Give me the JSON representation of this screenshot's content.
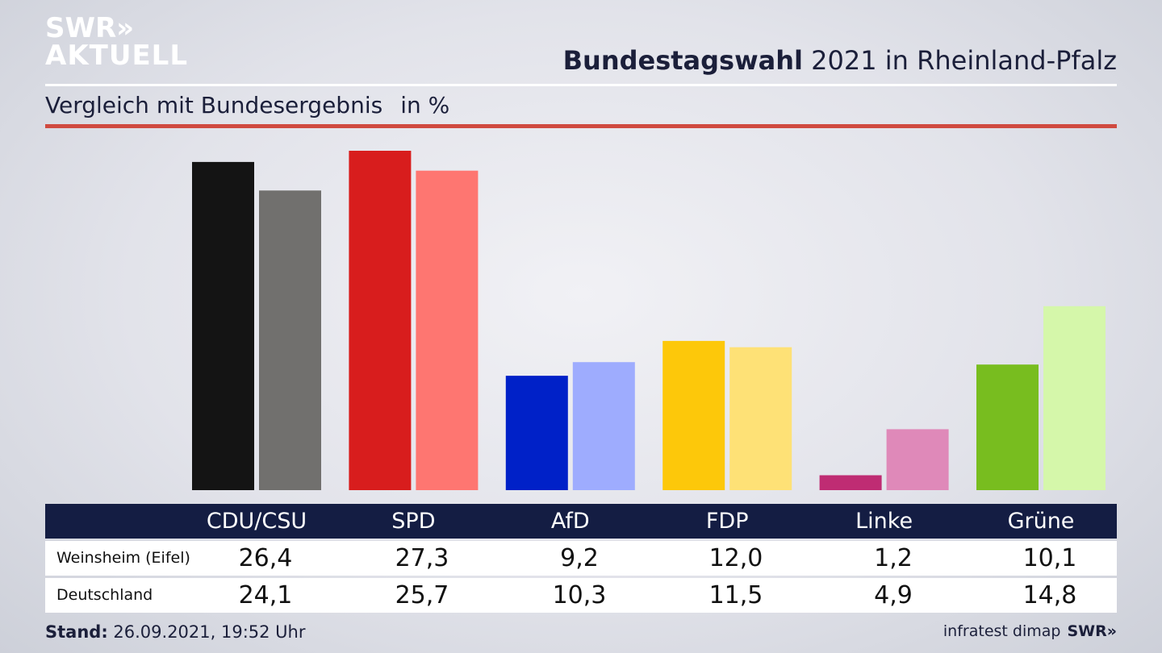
{
  "brand": {
    "line1": "SWR»",
    "line2": "AKTUELL",
    "footer_logo": "SWR»"
  },
  "header": {
    "title_bold": "Bundestagswahl",
    "title_rest": " 2021 in Rheinland-Pfalz",
    "subtitle": "Vergleich mit Bundesergebnis",
    "unit": "in %"
  },
  "table": {
    "rows": [
      {
        "label": "Weinsheim (Eifel)",
        "values": [
          "26,4",
          "27,3",
          "9,2",
          "12,0",
          "1,2",
          "10,1"
        ]
      },
      {
        "label": "Deutschland",
        "values": [
          "24,1",
          "25,7",
          "10,3",
          "11,5",
          "4,9",
          "14,8"
        ]
      }
    ]
  },
  "footer": {
    "stand_label": "Stand:",
    "stand_value": " 26.09.2021, 19:52 Uhr",
    "source": "infratest dimap"
  },
  "chart_data": {
    "type": "bar",
    "categories": [
      "CDU/CSU",
      "SPD",
      "AfD",
      "FDP",
      "Linke",
      "Grüne"
    ],
    "series": [
      {
        "values": [
          26.4,
          27.3,
          9.2,
          12.0,
          1.2,
          10.1
        ],
        "colors": [
          "#141414",
          "#d81d1d",
          "#0021c8",
          "#fdc80a",
          "#bf2c73",
          "#78bd1f"
        ]
      },
      {
        "values": [
          24.1,
          25.7,
          10.3,
          11.5,
          4.9,
          14.8
        ],
        "colors": [
          "#71706e",
          "#fe7671",
          "#9eacfe",
          "#fee176",
          "#df89b9",
          "#d5f7aa"
        ]
      }
    ],
    "title": "Bundestagswahl 2021 in Rheinland-Pfalz",
    "ylabel": "",
    "xlabel": "",
    "ylim": [
      0,
      27.3
    ],
    "grid": false,
    "legend": "none"
  }
}
